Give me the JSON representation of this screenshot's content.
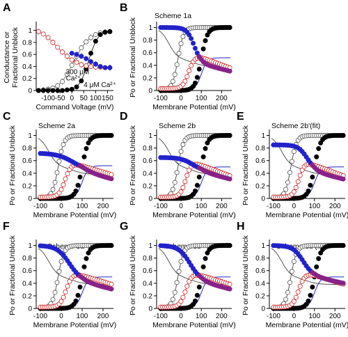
{
  "figure": {
    "colors": {
      "open": "#555555",
      "solid": "#000000",
      "red": "#cc2222",
      "blue": "#2222cc",
      "purple": "#882288"
    }
  },
  "chart_data": [
    {
      "panel": "A",
      "type": "scatter",
      "title": "",
      "xlabel": "Command Voltage (mV)",
      "ylabel": "Conductance or Fractional Unblock",
      "xlim": [
        -150,
        175
      ],
      "ylim": [
        0,
        1.1
      ],
      "xticks": [
        -100,
        -50,
        0,
        50,
        100,
        150
      ],
      "xticklabels": [
        "-100",
        "-50",
        "0",
        "50",
        "100",
        "150"
      ],
      "yticks": [
        0,
        0.2,
        0.4,
        0.6,
        0.8,
        1
      ],
      "yticklabels": [
        "0",
        "0.2",
        "0.4",
        "0.6",
        "0.8",
        "1"
      ],
      "annotations": [
        {
          "text": "300 μM",
          "x": -25,
          "y": 0.27
        },
        {
          "text": "Ca²⁺",
          "x": -25,
          "y": 0.17
        },
        {
          "text": "4 μM Ca²⁺",
          "x": 50,
          "y": 0.06
        }
      ],
      "series": [
        {
          "name": "",
          "style": "open",
          "errorbars": true,
          "x": [
            -140,
            -120,
            -100,
            -80,
            -60,
            -40,
            -20,
            0,
            20,
            40,
            60,
            80,
            100,
            120,
            140,
            160
          ],
          "y": [
            0.0,
            0.01,
            0.02,
            0.04,
            0.08,
            0.15,
            0.27,
            0.42,
            0.57,
            0.71,
            0.81,
            0.88,
            0.93,
            0.96,
            0.97,
            0.98
          ]
        },
        {
          "name": "",
          "style": "solid",
          "x": [
            -140,
            -120,
            -100,
            -80,
            -60,
            -40,
            -20,
            0,
            20,
            40,
            60,
            80,
            100,
            120,
            140,
            160
          ],
          "y": [
            0.0,
            0.0,
            0.0,
            0.0,
            0.0,
            0.0,
            0.01,
            0.02,
            0.06,
            0.16,
            0.36,
            0.62,
            0.82,
            0.93,
            0.97,
            0.98
          ]
        },
        {
          "name": "",
          "style": "red_open",
          "errorbars": true,
          "x": [
            -140,
            -120,
            -100,
            -80,
            -60,
            -40,
            -20,
            0,
            20,
            40,
            60,
            80,
            100,
            120,
            140,
            160
          ],
          "y": [
            0.98,
            0.94,
            0.88,
            0.8,
            0.72,
            0.64,
            0.57,
            0.51,
            0.47,
            0.43,
            0.41,
            0.4,
            0.39,
            0.39,
            0.38,
            0.38
          ]
        },
        {
          "name": "",
          "style": "blue_solid",
          "errorbars": true,
          "x": [
            0,
            20,
            40,
            60,
            80,
            100,
            120,
            140,
            160
          ],
          "y": [
            0.62,
            0.6,
            0.57,
            0.53,
            0.48,
            0.44,
            0.4,
            0.38,
            0.38
          ]
        }
      ]
    },
    {
      "panel": "B",
      "type": "scatter",
      "title": "Scheme 1a",
      "xlabel": "Membrane Potential (mV)",
      "ylabel": "Po or Fractional Unblock",
      "xlim": [
        -120,
        250
      ],
      "ylim": [
        0,
        1.05
      ],
      "xticks": [
        -100,
        0,
        100,
        200
      ],
      "xticklabels": [
        "-100",
        "0",
        "100",
        "200"
      ],
      "yticks": [
        0,
        0.2,
        0.4,
        0.6,
        0.8,
        1
      ],
      "yticklabels": [
        "0",
        "0.2",
        "0.4",
        "0.6",
        "0.8",
        "1"
      ],
      "model": {
        "openV": -15,
        "openK": 14,
        "solidV": 100,
        "solidK": 15,
        "redLow": 0.03,
        "redHigh": 0.6,
        "redV": 40,
        "redK": 15,
        "redSlope": 0.0012,
        "blueStart": 1.0,
        "blueV": 65,
        "blueK": 18,
        "blueEnd": 0.42,
        "blueSlope": 0.0008,
        "blueLine": 0.52,
        "markerLine": "blue"
      }
    },
    {
      "panel": "C",
      "type": "scatter",
      "title": "Scheme 2a",
      "xlabel": "Membrane Potential (mV)",
      "ylabel": "Po or Fractional Unblock",
      "xlim": [
        -120,
        250
      ],
      "ylim": [
        0,
        1.05
      ],
      "xticks": [
        -100,
        0,
        100,
        200
      ],
      "xticklabels": [
        "-100",
        "0",
        "100",
        "200"
      ],
      "yticks": [
        0,
        0.2,
        0.4,
        0.6,
        0.8,
        1
      ],
      "yticklabels": [
        "0",
        "0.2",
        "0.4",
        "0.6",
        "0.8",
        "1"
      ],
      "model": {
        "openV": -15,
        "openK": 14,
        "solidV": 100,
        "solidK": 15,
        "redLow": 0.02,
        "redHigh": 0.6,
        "redV": 20,
        "redK": 15,
        "redSlope": 0.001,
        "blueStart": 0.72,
        "blueV": 60,
        "blueK": 40,
        "blueEnd": 0.42,
        "blueSlope": 0.0008,
        "blueLine": 0.52,
        "markerLine": "blue"
      }
    },
    {
      "panel": "D",
      "type": "scatter",
      "title": "Scheme 2b",
      "xlabel": "Membrane Potential (mV)",
      "ylabel": "Po or Fractional Unblock",
      "xlim": [
        -120,
        250
      ],
      "ylim": [
        0,
        1.05
      ],
      "xticks": [
        -100,
        0,
        100,
        200
      ],
      "xticklabels": [
        "-100",
        "0",
        "100",
        "200"
      ],
      "yticks": [
        0,
        0.2,
        0.4,
        0.6,
        0.8,
        1
      ],
      "yticklabels": [
        "0",
        "0.2",
        "0.4",
        "0.6",
        "0.8",
        "1"
      ],
      "model": {
        "openV": -15,
        "openK": 14,
        "solidV": 100,
        "solidK": 15,
        "redLow": 0.02,
        "redHigh": 0.62,
        "redV": 25,
        "redK": 14,
        "redSlope": 0.0012,
        "blueStart": 0.65,
        "blueV": 60,
        "blueK": 30,
        "blueEnd": 0.42,
        "blueSlope": 0.0008,
        "blueLine": 0.5,
        "markerLine": "blue"
      }
    },
    {
      "panel": "E",
      "type": "scatter",
      "title": "Scheme 2b'(fit)",
      "xlabel": "Membrane Potential (mV)",
      "ylabel": "Po or Fractional Unblock",
      "xlim": [
        -120,
        250
      ],
      "ylim": [
        0,
        1.05
      ],
      "xticks": [
        -100,
        0,
        100,
        200
      ],
      "xticklabels": [
        "-100",
        "0",
        "100",
        "200"
      ],
      "yticks": [
        0,
        0.2,
        0.4,
        0.6,
        0.8,
        1
      ],
      "yticklabels": [
        "0",
        "0.2",
        "0.4",
        "0.6",
        "0.8",
        "1"
      ],
      "model": {
        "openV": -15,
        "openK": 14,
        "solidV": 100,
        "solidK": 15,
        "redLow": 0.02,
        "redHigh": 0.62,
        "redV": 25,
        "redK": 14,
        "redSlope": 0.0012,
        "blueStart": 0.85,
        "blueV": 65,
        "blueK": 22,
        "blueEnd": 0.42,
        "blueSlope": 0.0008,
        "blueLine": 0.5,
        "markerLine": "blue"
      }
    },
    {
      "panel": "F",
      "type": "scatter",
      "title": "Scheme 3a",
      "xlabel": "Membrane Potential (mV)",
      "ylabel": "Po or Fractional Unblock",
      "xlim": [
        -120,
        250
      ],
      "ylim": [
        0,
        1.05
      ],
      "xticks": [
        -100,
        0,
        100,
        200
      ],
      "xticklabels": [
        "-100",
        "0",
        "100",
        "200"
      ],
      "yticks": [
        0,
        0.2,
        0.4,
        0.6,
        0.8,
        1
      ],
      "yticklabels": [
        "0",
        "0.2",
        "0.4",
        "0.6",
        "0.8",
        "1"
      ],
      "model": {
        "openV": -15,
        "openK": 14,
        "solidV": 100,
        "solidK": 15,
        "redLow": 0.02,
        "redHigh": 0.6,
        "redV": 25,
        "redK": 15,
        "redSlope": 0.001,
        "blueStart": 1.0,
        "blueV": 40,
        "blueK": 30,
        "blueEnd": 0.42,
        "blueSlope": 0.0008,
        "blueLine": 0.5,
        "markerLine": "blue"
      }
    },
    {
      "panel": "G",
      "type": "scatter",
      "title": "Scheme 3b",
      "xlabel": "Membrane Potential (mV)",
      "ylabel": "Po or Fractional Unblock",
      "xlim": [
        -120,
        250
      ],
      "ylim": [
        0,
        1.05
      ],
      "xticks": [
        -100,
        0,
        100,
        200
      ],
      "xticklabels": [
        "-100",
        "0",
        "100",
        "200"
      ],
      "yticks": [
        0,
        0.2,
        0.4,
        0.6,
        0.8,
        1
      ],
      "yticklabels": [
        "0",
        "0.2",
        "0.4",
        "0.6",
        "0.8",
        "1"
      ],
      "model": {
        "openV": -15,
        "openK": 14,
        "solidV": 100,
        "solidK": 15,
        "redLow": 0.02,
        "redHigh": 0.6,
        "redV": 25,
        "redK": 15,
        "redSlope": 0.001,
        "blueStart": 1.0,
        "blueV": 45,
        "blueK": 28,
        "blueEnd": 0.42,
        "blueSlope": 0.0008,
        "blueLine": 0.5,
        "markerLine": "blue"
      }
    },
    {
      "panel": "H",
      "type": "scatter",
      "title": "Scheme 3b'(fit)",
      "xlabel": "Membrane Potential (mV)",
      "ylabel": "Po or Fractional Unblock",
      "xlim": [
        -120,
        250
      ],
      "ylim": [
        0,
        1.05
      ],
      "xticks": [
        -100,
        0,
        100,
        200
      ],
      "xticklabels": [
        "-100",
        "0",
        "100",
        "200"
      ],
      "yticks": [
        0,
        0.2,
        0.4,
        0.6,
        0.8,
        1
      ],
      "yticklabels": [
        "0",
        "0.2",
        "0.4",
        "0.6",
        "0.8",
        "1"
      ],
      "model": {
        "openV": -15,
        "openK": 14,
        "solidV": 100,
        "solidK": 15,
        "redLow": 0.02,
        "redHigh": 0.6,
        "redV": 25,
        "redK": 15,
        "redSlope": 0.001,
        "blueStart": 1.0,
        "blueV": 45,
        "blueK": 25,
        "blueEnd": 0.5,
        "blueSlope": 0.0007,
        "blueLine": 0.5,
        "markerLine": "blue"
      }
    }
  ]
}
